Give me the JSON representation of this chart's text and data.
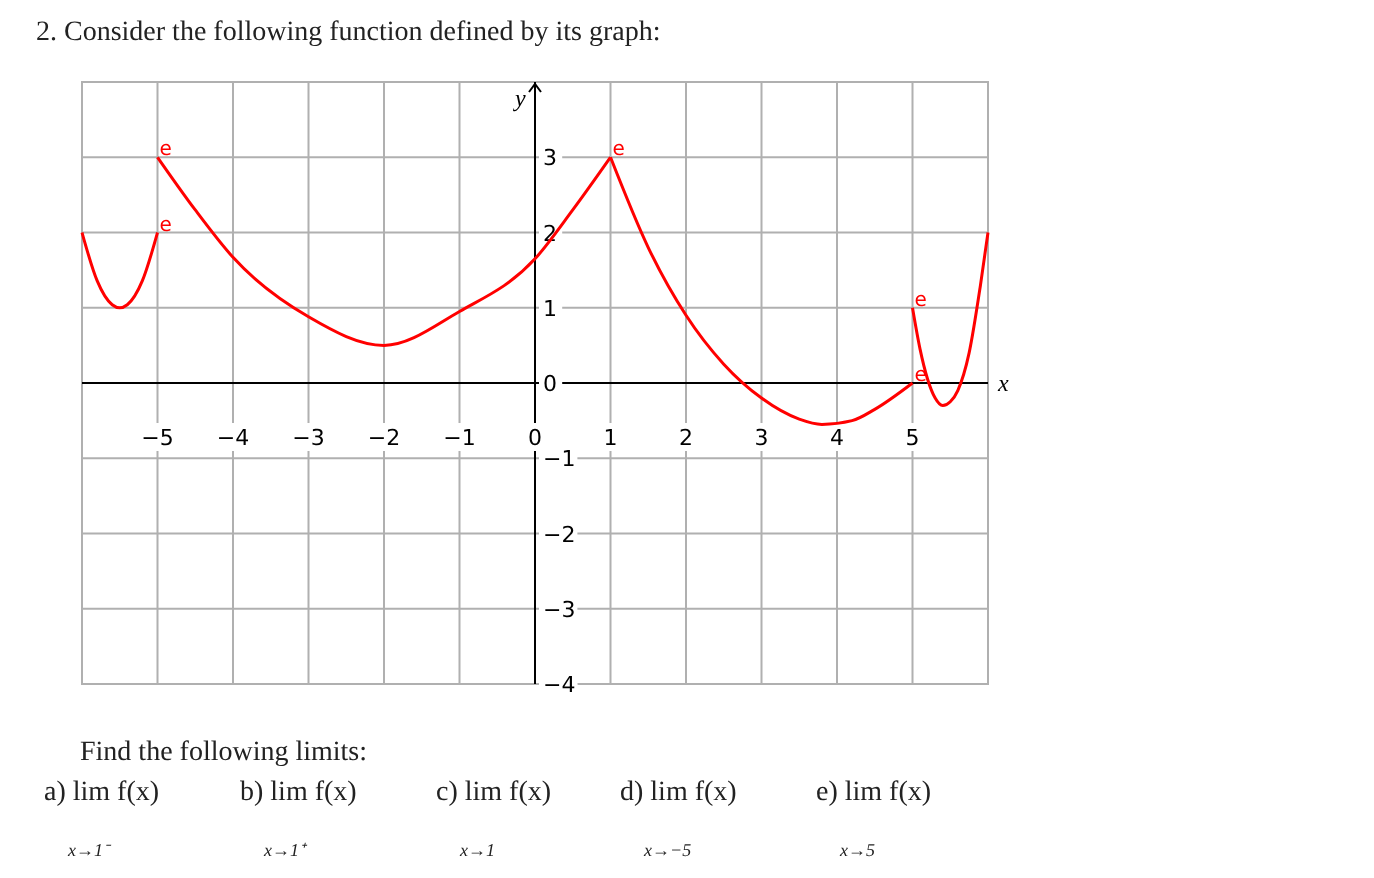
{
  "chart_data": {
    "type": "line",
    "title": "2. Consider the following function defined by its graph:",
    "xlabel": "x",
    "ylabel": "y",
    "xlim": [
      -6,
      6
    ],
    "ylim": [
      -4,
      4
    ],
    "xticks": [
      {
        "value": -5,
        "label": "−5"
      },
      {
        "value": -4,
        "label": "−4"
      },
      {
        "value": -3,
        "label": "−3"
      },
      {
        "value": -2,
        "label": "−2"
      },
      {
        "value": -1,
        "label": "−1"
      },
      0,
      1,
      2,
      3,
      4,
      5
    ],
    "yticks": [
      {
        "value": -4,
        "label": "−4"
      },
      {
        "value": -3,
        "label": "−3"
      },
      {
        "value": -2,
        "label": "−2"
      },
      {
        "value": -1,
        "label": "−1"
      },
      0,
      1,
      2,
      3
    ],
    "grid": true,
    "marker": "none",
    "line_style": "solid",
    "series": [
      {
        "color": "#ff0000",
        "x": [
          -6,
          -5.8,
          -5.6,
          -5.5,
          -5.4,
          -5.2,
          -5
        ],
        "values": [
          2,
          1.36,
          1.04,
          1,
          1.04,
          1.36,
          2
        ]
      },
      {
        "color": "#ff0000",
        "x": [
          -5,
          -4.5,
          -4,
          -3,
          -2,
          -1,
          0,
          0.5,
          1
        ],
        "values": [
          3,
          2.3,
          1.67,
          0.88,
          0.5,
          0.95,
          1.65,
          2.3,
          3
        ]
      },
      {
        "color": "#ff0000",
        "x": [
          1,
          1.5,
          2,
          2.5,
          3,
          3.5,
          3.8,
          4.2,
          4.5,
          5
        ],
        "values": [
          3,
          1.8,
          0.9,
          0.25,
          -0.2,
          -0.48,
          -0.55,
          -0.5,
          -0.35,
          0
        ]
      },
      {
        "color": "#ff0000",
        "x": [
          5,
          5.1,
          5.2,
          5.3,
          5.4,
          5.5,
          5.6,
          5.75,
          5.9,
          6
        ],
        "values": [
          1,
          0.45,
          0.05,
          -0.2,
          -0.3,
          -0.25,
          -0.1,
          0.4,
          1.3,
          2
        ]
      }
    ],
    "annotations": [
      {
        "text": "e",
        "x": -5,
        "y": 3
      },
      {
        "text": "e",
        "x": -5,
        "y": 2
      },
      {
        "text": "e",
        "x": 1,
        "y": 3
      },
      {
        "text": "e",
        "x": 5,
        "y": 1
      },
      {
        "text": "e",
        "x": 5,
        "y": 0
      },
      "Find the following limits:",
      "a) lim  f(x)",
      "x→1⁻",
      "b) lim  f(x)",
      "x→1⁺",
      "c) lim f(x)",
      "x→1",
      "d) lim  f(x)",
      "x→−5",
      "e) lim f(x)",
      "x→5"
    ]
  }
}
